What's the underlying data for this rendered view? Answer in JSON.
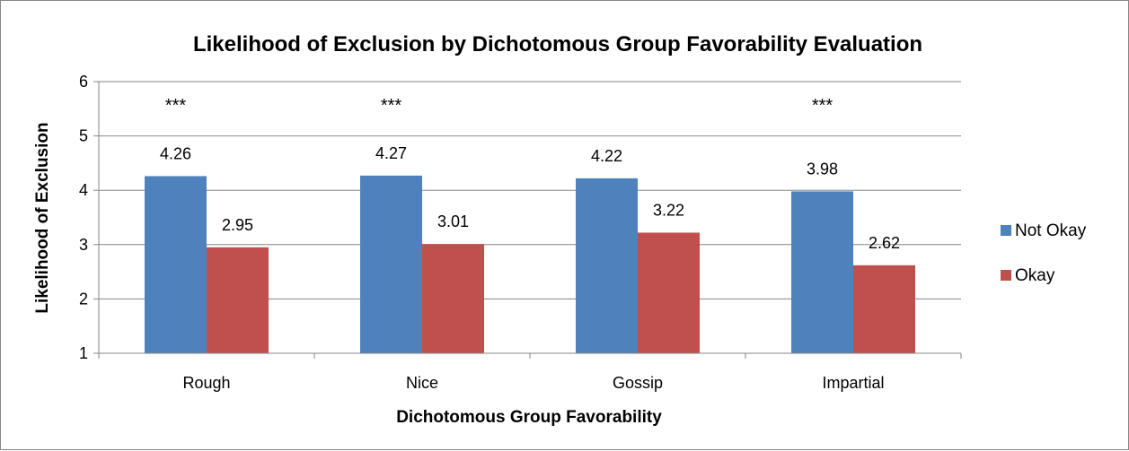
{
  "chart_data": {
    "type": "bar",
    "title": "Likelihood of Exclusion by Dichotomous Group Favorability Evaluation",
    "xlabel": "Dichotomous Group Favorability",
    "ylabel": "Likelihood of Exclusion",
    "categories": [
      "Rough",
      "Nice",
      "Gossip",
      "Impartial"
    ],
    "series": [
      {
        "name": "Not Okay",
        "color": "#4F81BD",
        "values": [
          4.26,
          4.27,
          4.22,
          3.98
        ],
        "labels": [
          "4.26",
          "4.27",
          "4.22",
          "3.98"
        ]
      },
      {
        "name": "Okay",
        "color": "#C0504D",
        "values": [
          2.95,
          3.01,
          3.22,
          2.62
        ],
        "labels": [
          "2.95",
          "3.01",
          "3.22",
          "2.62"
        ]
      }
    ],
    "significance": [
      "***",
      "***",
      "",
      "***"
    ],
    "ylim": [
      1,
      6
    ],
    "yticks": [
      1,
      2,
      3,
      4,
      5,
      6
    ],
    "grid": true,
    "legend_position": "right"
  }
}
